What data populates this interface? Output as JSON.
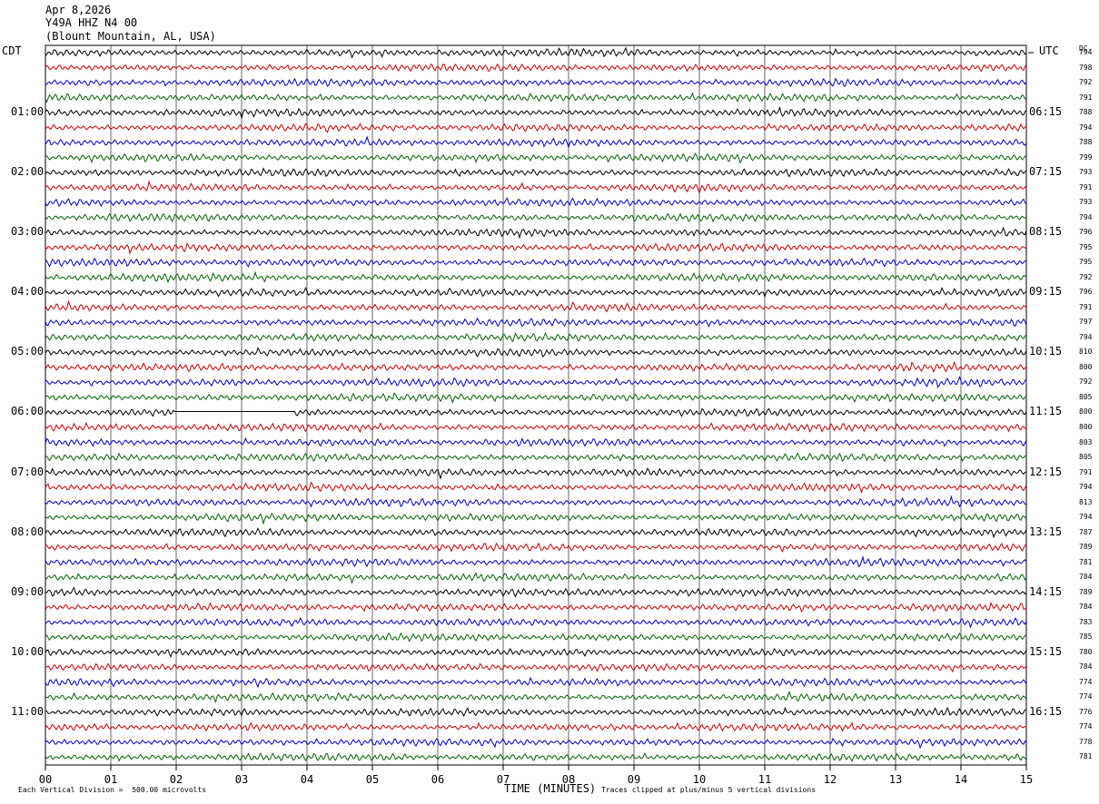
{
  "header": {
    "date": "Apr 8,2026",
    "station": "Y49A HHZ N4 00",
    "location": "(Blount Mountain, AL, USA)"
  },
  "left_tz": "CDT",
  "right_tz": "UTC",
  "dc_label": "DC",
  "footer": {
    "scale_note": "Each Vertical Division =  500.00 microvolts",
    "clip_note": "Traces clipped at plus/minus 5 vertical divisions"
  },
  "colors": {
    "trace_cycle": [
      "#000000",
      "#cc0000",
      "#0000cc",
      "#006600"
    ],
    "grid": "#000000",
    "background": "#ffffff"
  },
  "chart_data": {
    "type": "line",
    "xlabel": "TIME (MINUTES)",
    "xlim": [
      0,
      15
    ],
    "x_ticks": [
      "00",
      "01",
      "02",
      "03",
      "04",
      "05",
      "06",
      "07",
      "08",
      "09",
      "10",
      "11",
      "12",
      "13",
      "14",
      "15"
    ],
    "left_hour_labels": [
      "01:00",
      "02:00",
      "03:00",
      "04:00",
      "05:00",
      "06:00",
      "07:00",
      "08:00",
      "09:00",
      "10:00",
      "11:00"
    ],
    "right_hour_labels": [
      "06:15",
      "07:15",
      "08:15",
      "09:15",
      "10:15",
      "11:15",
      "12:15",
      "13:15",
      "14:15",
      "15:15",
      "16:15"
    ],
    "dc_offsets": [
      794,
      798,
      792,
      791,
      788,
      794,
      788,
      799,
      793,
      791,
      793,
      794,
      796,
      795,
      795,
      792,
      796,
      791,
      797,
      794,
      810,
      800,
      792,
      805,
      800,
      800,
      803,
      805,
      791,
      794,
      813,
      794,
      787,
      789,
      781,
      784,
      789,
      784,
      783,
      785,
      780,
      784,
      774,
      774,
      776,
      774,
      778,
      781
    ],
    "gap": {
      "trace_index": 24,
      "start_min": 2.0,
      "end_min": 3.8
    }
  }
}
